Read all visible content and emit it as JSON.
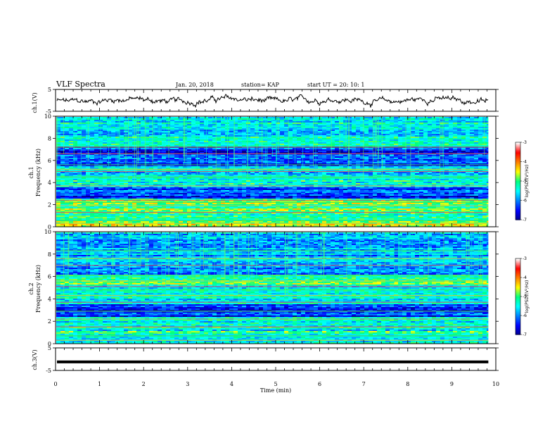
{
  "header": {
    "title": "VLF Spectra",
    "date": "Jan. 20, 2018",
    "station": "station= KAP",
    "start": "start  UT  =   20: 10: 1"
  },
  "panels": {
    "ch1_wave_label": "ch.1(V)",
    "ch1_spec_label": "ch.1",
    "ch2_spec_label": "ch.2",
    "freq_label": "Frequency  (kHz)",
    "ch3_wave_label": "ch.3(V)",
    "colorbar_label": "log(PSD)(V²/Hz)"
  },
  "chart_data": [
    {
      "type": "line",
      "name": "ch1-waveform",
      "ylabel": "ch.1(V)",
      "ylim": [
        -5,
        5
      ],
      "yticks": [
        "5",
        "-5"
      ],
      "xlim": [
        0,
        10
      ],
      "x_end": 9.83
    },
    {
      "type": "heatmap",
      "name": "ch1-spectrogram",
      "ylabel": "Frequency  (kHz)",
      "ylim": [
        0,
        10
      ],
      "yticks": [
        "0",
        "2",
        "4",
        "6",
        "8",
        "10"
      ],
      "colorbar_ticks": [
        "-3",
        "-4",
        "-5",
        "-6",
        "-7"
      ],
      "colorbar_range": [
        -7,
        -3
      ],
      "colormap": [
        "#00008b",
        "#0000ff",
        "#0080ff",
        "#00ffff",
        "#00ff80",
        "#ffff00",
        "#ff8000",
        "#ff0000",
        "#ffffff"
      ],
      "bands": [
        {
          "from": 0.0,
          "to": 0.6,
          "level": 0.55
        },
        {
          "from": 0.6,
          "to": 1.5,
          "level": 0.45
        },
        {
          "from": 1.5,
          "to": 2.6,
          "level": 0.55
        },
        {
          "from": 2.6,
          "to": 3.6,
          "level": 0.18
        },
        {
          "from": 3.6,
          "to": 4.5,
          "level": 0.42
        },
        {
          "from": 4.5,
          "to": 5.5,
          "level": 0.35
        },
        {
          "from": 5.5,
          "to": 7.3,
          "level": 0.16
        },
        {
          "from": 7.3,
          "to": 10.0,
          "level": 0.38
        }
      ]
    },
    {
      "type": "heatmap",
      "name": "ch2-spectrogram",
      "ylabel": "Frequency  (kHz)",
      "ylim": [
        0,
        10
      ],
      "yticks": [
        "0",
        "2",
        "4",
        "6",
        "8",
        "10"
      ],
      "colorbar_ticks": [
        "-3",
        "-4",
        "-5",
        "-6",
        "-7"
      ],
      "colorbar_range": [
        -7,
        -3
      ],
      "bands": [
        {
          "from": 0.0,
          "to": 1.2,
          "level": 0.45
        },
        {
          "from": 1.2,
          "to": 2.4,
          "level": 0.4
        },
        {
          "from": 2.4,
          "to": 3.6,
          "level": 0.17
        },
        {
          "from": 3.6,
          "to": 5.4,
          "level": 0.4
        },
        {
          "from": 5.4,
          "to": 6.2,
          "level": 0.5
        },
        {
          "from": 6.2,
          "to": 8.0,
          "level": 0.3
        },
        {
          "from": 8.0,
          "to": 10.0,
          "level": 0.32
        }
      ]
    },
    {
      "type": "line",
      "name": "ch3-waveform",
      "ylabel": "ch.3(V)",
      "ylim": [
        -5,
        5
      ],
      "yticks": [
        "5",
        "-5"
      ],
      "value": -1.2,
      "xlim": [
        0,
        10
      ],
      "x_end": 9.83
    }
  ],
  "xaxis": {
    "label": "Time  (min)",
    "ticks": [
      "0",
      "1",
      "2",
      "3",
      "4",
      "5",
      "6",
      "7",
      "8",
      "9",
      "10"
    ],
    "range": [
      0,
      10
    ]
  }
}
